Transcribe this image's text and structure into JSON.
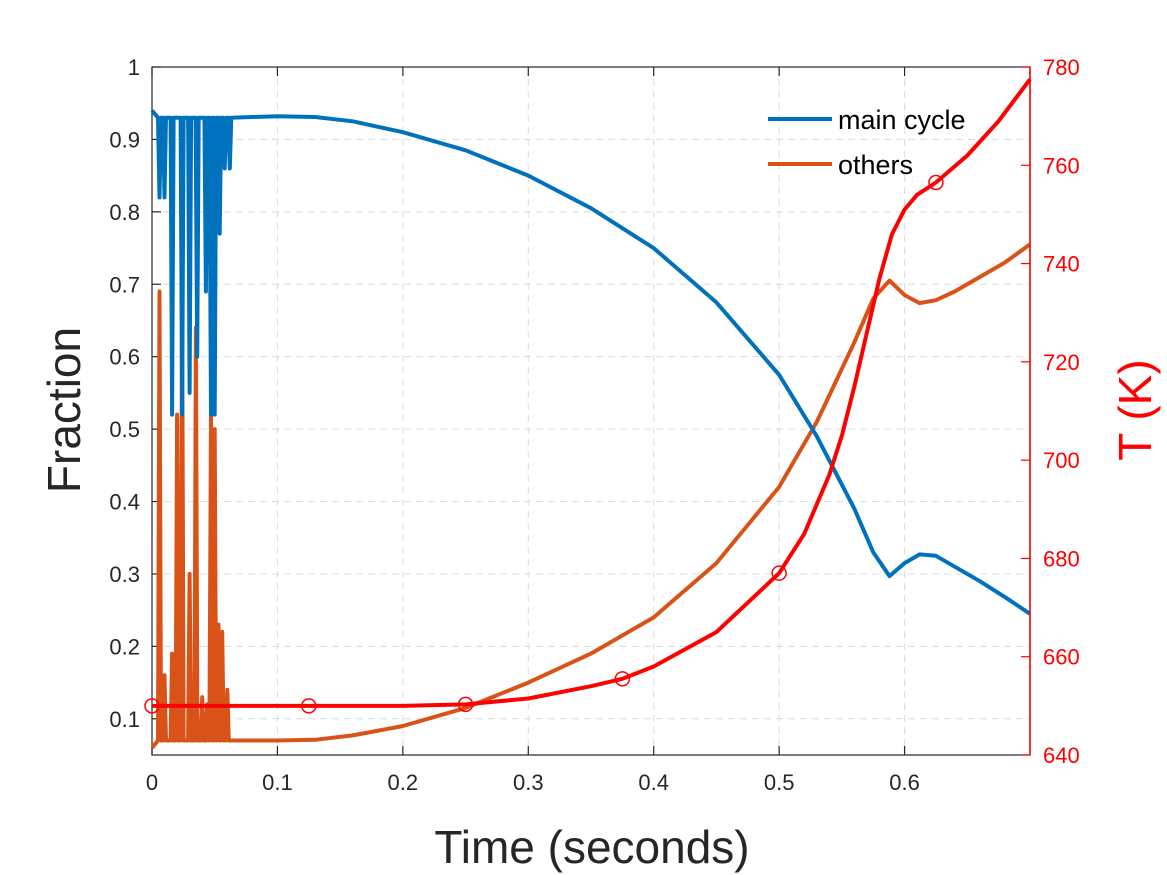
{
  "chart_data": {
    "type": "line",
    "xlabel": "Time (seconds)",
    "ylabel": "Fraction",
    "y2label": "T (K)",
    "xlim": [
      0,
      0.7
    ],
    "ylim": [
      0.05,
      1.0
    ],
    "y2lim": [
      640,
      780
    ],
    "xticks": [
      "0",
      "0.1",
      "0.2",
      "0.3",
      "0.4",
      "0.5",
      "0.6"
    ],
    "yticks": [
      "0.1",
      "0.2",
      "0.3",
      "0.4",
      "0.5",
      "0.6",
      "0.7",
      "0.8",
      "0.9",
      "1"
    ],
    "y2ticks": [
      "640",
      "660",
      "680",
      "700",
      "720",
      "740",
      "760",
      "780"
    ],
    "grid": true,
    "legend_position": "top-right",
    "colors": {
      "main_cycle": "#0072bd",
      "others": "#d95319",
      "temperature": "#ff0000",
      "grid": "#dcdcdc",
      "axis": "#262626"
    },
    "series": [
      {
        "name": "main cycle",
        "axis": "left",
        "oscillation": {
          "x_range": [
            0.0,
            0.062
          ],
          "spikes": [
            {
              "x": 0.006,
              "y": 0.82
            },
            {
              "x": 0.01,
              "y": 0.82
            },
            {
              "x": 0.016,
              "y": 0.52
            },
            {
              "x": 0.024,
              "y": 0.52
            },
            {
              "x": 0.03,
              "y": 0.55
            },
            {
              "x": 0.036,
              "y": 0.6
            },
            {
              "x": 0.043,
              "y": 0.69
            },
            {
              "x": 0.047,
              "y": 0.52
            },
            {
              "x": 0.05,
              "y": 0.52
            },
            {
              "x": 0.054,
              "y": 0.77
            },
            {
              "x": 0.058,
              "y": 0.86
            },
            {
              "x": 0.062,
              "y": 0.86
            }
          ],
          "baseline": 0.93
        },
        "x": [
          0,
          0.002,
          0.006,
          0.01,
          0.02,
          0.05,
          0.1,
          0.13,
          0.16,
          0.2,
          0.25,
          0.3,
          0.35,
          0.4,
          0.45,
          0.5,
          0.53,
          0.56,
          0.575,
          0.588,
          0.6,
          0.612,
          0.625,
          0.64,
          0.66,
          0.68,
          0.7
        ],
        "values": [
          0.94,
          0.945,
          0.938,
          0.935,
          0.932,
          0.932,
          0.932,
          0.931,
          0.925,
          0.91,
          0.885,
          0.85,
          0.805,
          0.75,
          0.675,
          0.575,
          0.49,
          0.39,
          0.33,
          0.297,
          0.315,
          0.327,
          0.325,
          0.31,
          0.29,
          0.268,
          0.245
        ]
      },
      {
        "name": "others",
        "axis": "left",
        "oscillation": {
          "x_range": [
            0.0,
            0.062
          ],
          "spikes": [
            {
              "x": 0.006,
              "y": 0.69
            },
            {
              "x": 0.01,
              "y": 0.16
            },
            {
              "x": 0.016,
              "y": 0.19
            },
            {
              "x": 0.02,
              "y": 0.52
            },
            {
              "x": 0.024,
              "y": 0.69
            },
            {
              "x": 0.03,
              "y": 0.3
            },
            {
              "x": 0.035,
              "y": 0.64
            },
            {
              "x": 0.04,
              "y": 0.13
            },
            {
              "x": 0.044,
              "y": 0.12
            },
            {
              "x": 0.047,
              "y": 0.52
            },
            {
              "x": 0.05,
              "y": 0.5
            },
            {
              "x": 0.053,
              "y": 0.23
            },
            {
              "x": 0.056,
              "y": 0.22
            },
            {
              "x": 0.06,
              "y": 0.14
            }
          ],
          "baseline": 0.07
        },
        "x": [
          0,
          0.002,
          0.006,
          0.01,
          0.02,
          0.05,
          0.1,
          0.13,
          0.16,
          0.2,
          0.25,
          0.3,
          0.35,
          0.4,
          0.45,
          0.5,
          0.53,
          0.56,
          0.575,
          0.588,
          0.6,
          0.612,
          0.625,
          0.64,
          0.66,
          0.68,
          0.7
        ],
        "values": [
          0.06,
          0.065,
          0.068,
          0.07,
          0.07,
          0.07,
          0.07,
          0.071,
          0.077,
          0.09,
          0.115,
          0.15,
          0.19,
          0.24,
          0.315,
          0.42,
          0.51,
          0.62,
          0.68,
          0.705,
          0.685,
          0.674,
          0.678,
          0.69,
          0.71,
          0.73,
          0.755
        ]
      },
      {
        "name": "T",
        "axis": "right",
        "x": [
          0,
          0.1,
          0.2,
          0.25,
          0.3,
          0.35,
          0.375,
          0.4,
          0.45,
          0.5,
          0.52,
          0.54,
          0.55,
          0.56,
          0.57,
          0.58,
          0.59,
          0.6,
          0.61,
          0.625,
          0.65,
          0.675,
          0.7
        ],
        "values": [
          650,
          650,
          650,
          650.3,
          651.5,
          654,
          655.5,
          658,
          665,
          677,
          685,
          697,
          705,
          715,
          726,
          737,
          746,
          751,
          754,
          756.5,
          762,
          769,
          777.5
        ],
        "markers_x": [
          0,
          0.125,
          0.25,
          0.375,
          0.5,
          0.625
        ],
        "markers_y": [
          650,
          650,
          650.3,
          655.5,
          677,
          756.5
        ]
      }
    ]
  }
}
